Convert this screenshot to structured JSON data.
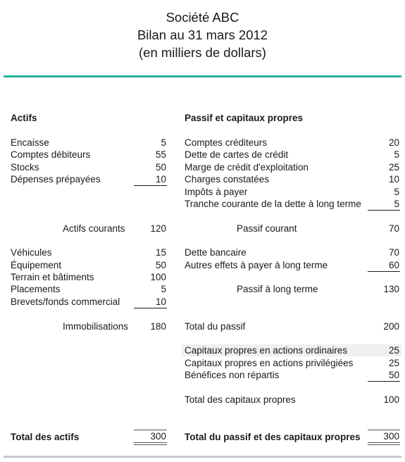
{
  "header": {
    "company": "Société ABC",
    "title": "Bilan au 31 mars 2012",
    "units": "(en milliers de dollars)"
  },
  "assets": {
    "heading": "Actifs",
    "current_items": [
      {
        "label": "Encaisse",
        "value": "5"
      },
      {
        "label": "Comptes débiteurs",
        "value": "55"
      },
      {
        "label": "Stocks",
        "value": "50"
      },
      {
        "label": "Dépenses prépayées",
        "value": "10"
      }
    ],
    "current_total": {
      "label": "Actifs courants",
      "value": "120"
    },
    "fixed_items": [
      {
        "label": "Véhicules",
        "value": "15"
      },
      {
        "label": "Équipement",
        "value": "50"
      },
      {
        "label": "Terrain et bâtiments",
        "value": "100"
      },
      {
        "label": "Placements",
        "value": "5"
      },
      {
        "label": "Brevets/fonds commercial",
        "value": "10"
      }
    ],
    "fixed_total": {
      "label": "Immobilisations",
      "value": "180"
    },
    "grand_total": {
      "label": "Total des actifs",
      "value": "300"
    }
  },
  "liabilities": {
    "heading": "Passif et capitaux propres",
    "current_items": [
      {
        "label": "Comptes créditeurs",
        "value": "20"
      },
      {
        "label": "Dette de cartes de crédit",
        "value": "5"
      },
      {
        "label": "Marge de crédit d'exploitation",
        "value": "25"
      },
      {
        "label": "Charges constatées",
        "value": "10"
      },
      {
        "label": "Impôts à payer",
        "value": "5"
      },
      {
        "label": "Tranche courante de la dette à long terme",
        "value": "5"
      }
    ],
    "current_total": {
      "label": "Passif courant",
      "value": "70"
    },
    "long_term_items": [
      {
        "label": "Dette bancaire",
        "value": "70"
      },
      {
        "label": "Autres effets à payer à long terme",
        "value": "60"
      }
    ],
    "long_term_total": {
      "label": "Passif à long terme",
      "value": "130"
    },
    "total_liabilities": {
      "label": "Total du passif",
      "value": "200"
    },
    "equity_items": [
      {
        "label": "Capitaux propres en actions ordinaires",
        "value": "25"
      },
      {
        "label": "Capitaux propres en actions privilégiées",
        "value": "25"
      },
      {
        "label": "Bénéfices non répartis",
        "value": "50"
      }
    ],
    "equity_total": {
      "label": "Total des capitaux propres",
      "value": "100"
    },
    "grand_total": {
      "label": "Total du passif et des capitaux propres",
      "value": "300"
    }
  }
}
